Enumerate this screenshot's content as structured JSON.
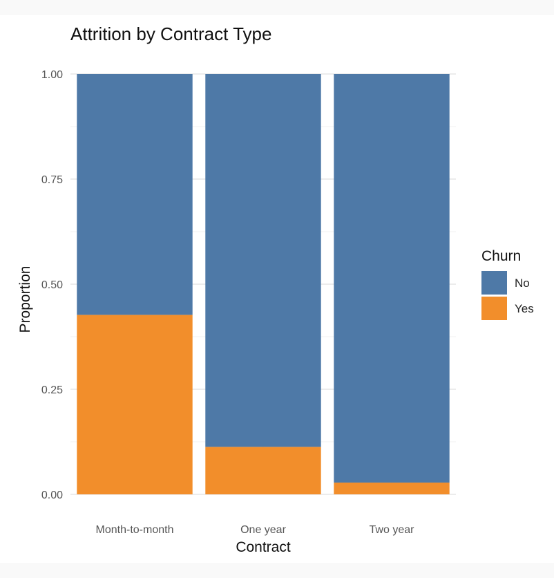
{
  "chart_data": {
    "type": "bar",
    "stacked": true,
    "title": "Attrition by Contract Type",
    "xlabel": "Contract",
    "ylabel": "Proportion",
    "categories": [
      "Month-to-month",
      "One year",
      "Two year"
    ],
    "series": [
      {
        "name": "No",
        "color": "#4e79a7",
        "values": [
          0.573,
          0.887,
          0.972
        ]
      },
      {
        "name": "Yes",
        "color": "#f28e2b",
        "values": [
          0.427,
          0.113,
          0.028
        ]
      }
    ],
    "ylim": [
      0,
      1
    ],
    "yticks": [
      0,
      0.25,
      0.5,
      0.75,
      1
    ],
    "ytick_labels": [
      "0.00",
      "0.25",
      "0.50",
      "0.75",
      "1.00"
    ],
    "grid": true,
    "legend": {
      "title": "Churn",
      "position": "right",
      "entries": [
        {
          "label": "No",
          "color": "#4e79a7"
        },
        {
          "label": "Yes",
          "color": "#f28e2b"
        }
      ]
    }
  }
}
